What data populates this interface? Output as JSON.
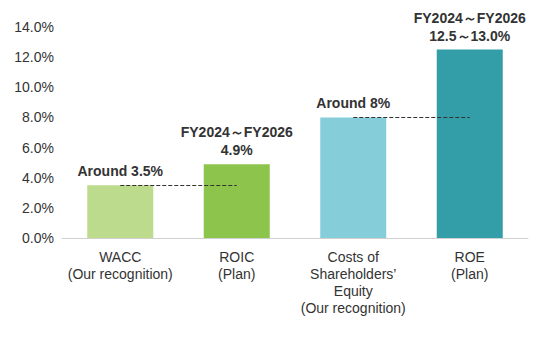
{
  "chart_data": {
    "type": "bar",
    "categories": [
      "WACC\n(Our recognition)",
      "ROIC\n(Plan)",
      "Costs of\nShareholders’\nEquity\n(Our recognition)",
      "ROE\n(Plan)"
    ],
    "values": [
      3.5,
      4.9,
      8,
      12.5
    ],
    "value_labels": [
      "Around 3.5%",
      "FY2024～FY2026\n4.9%",
      "Around 8%",
      "FY2024～FY2026\n12.5～13.0%"
    ],
    "colors": [
      "#bcdb8d",
      "#8dc44b",
      "#84cdd9",
      "#339ea8"
    ],
    "data_labels": true,
    "reference_lines": [
      {
        "value": 3.5,
        "from": "WACC\n(Our recognition)",
        "to": "ROIC\n(Plan)"
      },
      {
        "value": 8,
        "from": "Costs of\nShareholders’\nEquity\n(Our recognition)",
        "to": "ROE\n(Plan)"
      }
    ],
    "ylim": [
      0,
      14
    ],
    "yticks": [
      {
        "value": 0,
        "label": "0.0%"
      },
      {
        "value": 2,
        "label": "2.0%"
      },
      {
        "value": 4,
        "label": "4.0%"
      },
      {
        "value": 6,
        "label": "6.0%"
      },
      {
        "value": 8,
        "label": "8.0%"
      },
      {
        "value": 10,
        "label": "10.0%"
      },
      {
        "value": 12,
        "label": "12.0%"
      },
      {
        "value": 14,
        "label": "14.0%"
      }
    ],
    "grid": false
  }
}
